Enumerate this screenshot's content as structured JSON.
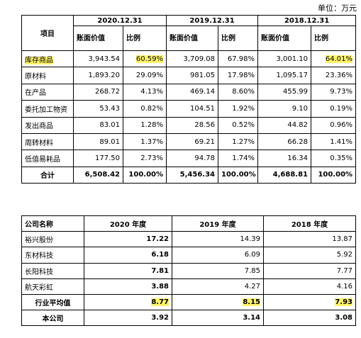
{
  "unit_label": "单位：万元",
  "inventory_table": {
    "header_item": "项目",
    "years": [
      "2020.12.31",
      "2019.12.31",
      "2018.12.31"
    ],
    "sub_headers": {
      "amount": "账面价值",
      "ratio": "比例"
    },
    "rows": [
      {
        "item": "库存商品",
        "v2020": "3,943.54",
        "r2020": "60.59%",
        "v2019": "3,709.08",
        "r2019": "67.98%",
        "v2018": "3,001.10",
        "r2018": "64.01%"
      },
      {
        "item": "原材料",
        "v2020": "1,893.20",
        "r2020": "29.09%",
        "v2019": "981.05",
        "r2019": "17.98%",
        "v2018": "1,095.17",
        "r2018": "23.36%"
      },
      {
        "item": "在产品",
        "v2020": "268.72",
        "r2020": "4.13%",
        "v2019": "469.14",
        "r2019": "8.60%",
        "v2018": "455.99",
        "r2018": "9.73%"
      },
      {
        "item": "委托加工物资",
        "v2020": "53.43",
        "r2020": "0.82%",
        "v2019": "104.51",
        "r2019": "1.92%",
        "v2018": "9.10",
        "r2018": "0.19%"
      },
      {
        "item": "发出商品",
        "v2020": "83.01",
        "r2020": "1.28%",
        "v2019": "28.56",
        "r2019": "0.52%",
        "v2018": "44.82",
        "r2018": "0.96%"
      },
      {
        "item": "周转材料",
        "v2020": "89.01",
        "r2020": "1.37%",
        "v2019": "69.21",
        "r2019": "1.27%",
        "v2018": "66.28",
        "r2018": "1.41%"
      },
      {
        "item": "低值易耗品",
        "v2020": "177.50",
        "r2020": "2.73%",
        "v2019": "94.78",
        "r2019": "1.74%",
        "v2018": "16.34",
        "r2018": "0.35%"
      },
      {
        "item": "合计",
        "v2020": "6,508.42",
        "r2020": "100.00%",
        "v2019": "5,456.34",
        "r2019": "100.00%",
        "v2018": "4,688.81",
        "r2018": "100.00%"
      }
    ]
  },
  "comparison_table": {
    "header_company": "公司名称",
    "years": [
      "2020 年度",
      "2019 年度",
      "2018 年度"
    ],
    "rows": [
      {
        "name": "裕兴股份",
        "y2020": "17.22",
        "y2019": "14.39",
        "y2018": "13.87"
      },
      {
        "name": "东材科技",
        "y2020": "6.18",
        "y2019": "6.09",
        "y2018": "5.92"
      },
      {
        "name": "长阳科技",
        "y2020": "7.81",
        "y2019": "7.85",
        "y2018": "7.77"
      },
      {
        "name": "航天彩虹",
        "y2020": "3.88",
        "y2019": "4.27",
        "y2018": "4.16"
      },
      {
        "name": "行业平均值",
        "y2020": "8.77",
        "y2019": "8.15",
        "y2018": "7.93"
      },
      {
        "name": "本公司",
        "y2020": "3.92",
        "y2019": "3.14",
        "y2018": "3.08"
      }
    ]
  },
  "highlight_color": "#fff46b"
}
